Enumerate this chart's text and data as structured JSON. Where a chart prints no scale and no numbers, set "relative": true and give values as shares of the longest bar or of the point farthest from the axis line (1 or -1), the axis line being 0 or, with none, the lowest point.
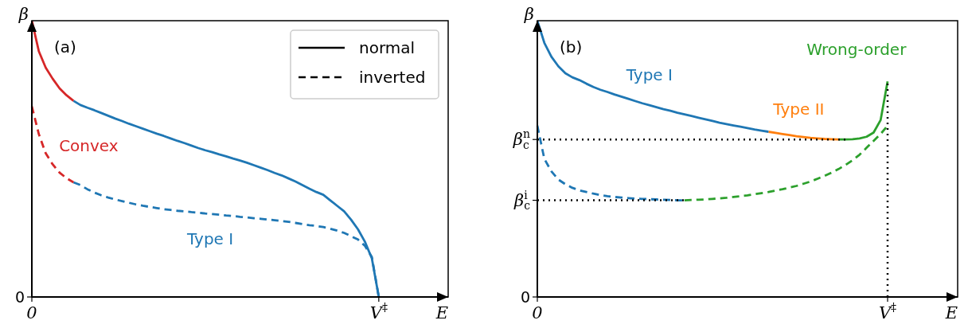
{
  "chart_data": [
    {
      "type": "line",
      "relative": true,
      "xlabel": "E",
      "ylabel": "β",
      "legend": "top right",
      "annotations": [
        "(a)",
        "0"
      ],
      "categories": [
        "0",
        null,
        null,
        null,
        null,
        null,
        null,
        null,
        null,
        null,
        null,
        null,
        null,
        null,
        null,
        null,
        null,
        null,
        null,
        null,
        null,
        null,
        null,
        null,
        null,
        null,
        null,
        null,
        null,
        null,
        null,
        null,
        null,
        null,
        null,
        null,
        null,
        null,
        null,
        null,
        null,
        null,
        null,
        null,
        null,
        null,
        null,
        null,
        null,
        null,
        "V$^{‡}$",
        null,
        null,
        null,
        null,
        null,
        null,
        null,
        null,
        null,
        null
      ],
      "series": [
        {
          "color": "#d62728",
          "line_style": "solid",
          "values": [
            1.0,
            0.89,
            0.83,
            0.79,
            0.755,
            0.73,
            0.71,
            null,
            null,
            null,
            null,
            null,
            null,
            null,
            null,
            null,
            null,
            null,
            null,
            null,
            null,
            null,
            null,
            null,
            null,
            null,
            null,
            null,
            null,
            null,
            null,
            null,
            null,
            null,
            null,
            null,
            null,
            null,
            null,
            null,
            null,
            null,
            null,
            null,
            null,
            null,
            null,
            null,
            null,
            null,
            null,
            null,
            null,
            null,
            null,
            null,
            null,
            null,
            null,
            null,
            null
          ]
        },
        {
          "color": "#1f77b4",
          "line_style": "solid",
          "values": [
            null,
            null,
            null,
            null,
            null,
            null,
            0.71,
            0.695,
            0.685,
            0.676,
            0.666,
            0.656,
            0.646,
            0.637,
            0.627,
            0.618,
            0.609,
            0.6,
            0.591,
            0.583,
            0.574,
            0.565,
            0.557,
            0.548,
            0.539,
            0.531,
            0.524,
            0.516,
            0.509,
            0.501,
            0.494,
            0.486,
            0.477,
            0.468,
            0.459,
            0.449,
            0.44,
            0.429,
            0.418,
            0.405,
            0.392,
            0.38,
            0.37,
            0.35,
            0.33,
            0.31,
            0.28,
            0.245,
            0.2,
            0.14,
            0.0,
            null,
            null,
            null,
            null,
            null,
            null,
            null,
            null,
            null,
            null
          ]
        },
        {
          "name": "Convex",
          "color": "#d62728",
          "line_style": "dashed",
          "values": [
            0.69,
            0.59,
            0.52,
            0.48,
            0.45,
            0.43,
            0.415,
            null,
            null,
            null,
            null,
            null,
            null,
            null,
            null,
            null,
            null,
            null,
            null,
            null,
            null,
            null,
            null,
            null,
            null,
            null,
            null,
            null,
            null,
            null,
            null,
            null,
            null,
            null,
            null,
            null,
            null,
            null,
            null,
            null,
            null,
            null,
            null,
            null,
            null,
            null,
            null,
            null,
            null,
            null,
            null,
            null,
            null,
            null,
            null,
            null,
            null,
            null,
            null,
            null,
            null
          ]
        },
        {
          "name": "Type I",
          "color": "#1f77b4",
          "line_style": "dashed",
          "values": [
            null,
            null,
            null,
            null,
            null,
            null,
            0.415,
            0.405,
            0.39,
            0.378,
            0.368,
            0.36,
            0.353,
            0.347,
            0.341,
            0.335,
            0.33,
            0.326,
            0.322,
            0.318,
            0.315,
            0.312,
            0.31,
            0.307,
            0.305,
            0.302,
            0.3,
            0.298,
            0.295,
            0.293,
            0.29,
            0.288,
            0.285,
            0.283,
            0.28,
            0.278,
            0.275,
            0.272,
            0.268,
            0.264,
            0.26,
            0.257,
            0.253,
            0.247,
            0.24,
            0.232,
            0.22,
            0.208,
            0.185,
            0.145,
            0.0,
            null,
            null,
            null,
            null,
            null,
            null,
            null,
            null,
            null,
            null
          ]
        },
        {
          "name": "normal",
          "color": "#000000",
          "line_style": "solid",
          "values": [
            null,
            null,
            null,
            null,
            null,
            null,
            null,
            null,
            null,
            null,
            null,
            null,
            null,
            null,
            null,
            null,
            null,
            null,
            null,
            null,
            null,
            null,
            null,
            null,
            null,
            null,
            null,
            null,
            null,
            null,
            null,
            null,
            null,
            null,
            null,
            null,
            null,
            null,
            null,
            null,
            null,
            null,
            null,
            null,
            null,
            null,
            null,
            null,
            null,
            null,
            null,
            null,
            null,
            null,
            null,
            null,
            null,
            null,
            null,
            null,
            null
          ]
        },
        {
          "name": "inverted",
          "color": "#000000",
          "line_style": "dashed",
          "values": [
            null,
            null,
            null,
            null,
            null,
            null,
            null,
            null,
            null,
            null,
            null,
            null,
            null,
            null,
            null,
            null,
            null,
            null,
            null,
            null,
            null,
            null,
            null,
            null,
            null,
            null,
            null,
            null,
            null,
            null,
            null,
            null,
            null,
            null,
            null,
            null,
            null,
            null,
            null,
            null,
            null,
            null,
            null,
            null,
            null,
            null,
            null,
            null,
            null,
            null,
            null,
            null,
            null,
            null,
            null,
            null,
            null,
            null,
            null,
            null,
            null
          ]
        }
      ]
    },
    {
      "type": "line",
      "relative": true,
      "xlabel": "E",
      "ylabel": "β",
      "annotations": [
        "(b)",
        "0"
      ],
      "categories": [
        "0",
        null,
        null,
        null,
        null,
        null,
        null,
        null,
        null,
        null,
        null,
        null,
        null,
        null,
        null,
        null,
        null,
        null,
        null,
        null,
        null,
        null,
        null,
        null,
        null,
        null,
        null,
        null,
        null,
        null,
        null,
        null,
        null,
        null,
        null,
        null,
        null,
        null,
        null,
        null,
        null,
        null,
        null,
        null,
        null,
        null,
        null,
        null,
        null,
        null,
        "V$^{‡}$",
        null,
        null,
        null,
        null,
        null,
        null,
        null,
        null,
        null,
        null
      ],
      "ref_lines": [
        {
          "axis": "y",
          "value": 0.57,
          "label": "β$_{c}$$^{n}$",
          "line_style": "dotted",
          "color": "#000000"
        },
        {
          "axis": "y",
          "value": 0.35,
          "label": "β$_{c}$$^{i}$",
          "line_style": "dotted",
          "color": "#000000"
        },
        {
          "axis": "x",
          "value": "V$^{‡}$",
          "line_style": "dotted",
          "color": "#000000"
        }
      ],
      "series": [
        {
          "name": "Type I",
          "color": "#1f77b4",
          "line_style": "solid",
          "values": [
            1.0,
            0.92,
            0.87,
            0.835,
            0.81,
            0.795,
            0.785,
            0.772,
            0.76,
            0.75,
            0.742,
            0.733,
            0.725,
            0.717,
            0.709,
            0.701,
            0.694,
            0.687,
            0.68,
            0.674,
            0.667,
            0.661,
            0.655,
            0.649,
            0.643,
            0.637,
            0.631,
            0.626,
            0.621,
            0.616,
            0.611,
            0.606,
            0.602,
            0.598,
            null,
            null,
            null,
            null,
            null,
            null,
            null,
            null,
            null,
            null,
            null,
            null,
            null,
            null,
            null,
            null,
            null,
            null,
            null,
            null,
            null,
            null,
            null,
            null,
            null,
            null,
            null
          ]
        },
        {
          "name": "Type II",
          "color": "#ff7f0e",
          "line_style": "solid",
          "values": [
            null,
            null,
            null,
            null,
            null,
            null,
            null,
            null,
            null,
            null,
            null,
            null,
            null,
            null,
            null,
            null,
            null,
            null,
            null,
            null,
            null,
            null,
            null,
            null,
            null,
            null,
            null,
            null,
            null,
            null,
            null,
            null,
            null,
            0.598,
            0.594,
            0.59,
            0.586,
            0.582,
            0.579,
            0.576,
            0.574,
            0.572,
            0.571,
            0.57,
            null,
            null,
            null,
            null,
            null,
            null,
            null,
            null,
            null,
            null,
            null,
            null,
            null,
            null,
            null,
            null,
            null
          ]
        },
        {
          "name": "Wrong-order",
          "color": "#2ca02c",
          "line_style": "solid",
          "values": [
            null,
            null,
            null,
            null,
            null,
            null,
            null,
            null,
            null,
            null,
            null,
            null,
            null,
            null,
            null,
            null,
            null,
            null,
            null,
            null,
            null,
            null,
            null,
            null,
            null,
            null,
            null,
            null,
            null,
            null,
            null,
            null,
            null,
            null,
            null,
            null,
            null,
            null,
            null,
            null,
            null,
            null,
            null,
            0.57,
            0.57,
            0.571,
            0.574,
            0.58,
            0.595,
            0.64,
            0.78,
            null,
            null,
            null,
            null,
            null,
            null,
            null,
            null,
            null,
            null
          ]
        },
        {
          "color": "#1f77b4",
          "line_style": "dashed",
          "values": [
            0.62,
            0.5,
            0.455,
            0.425,
            0.408,
            0.395,
            0.386,
            0.38,
            0.374,
            0.369,
            0.365,
            0.362,
            0.36,
            0.358,
            0.356,
            0.355,
            0.354,
            0.353,
            0.352,
            0.351,
            0.35,
            0.35,
            null,
            null,
            null,
            null,
            null,
            null,
            null,
            null,
            null,
            null,
            null,
            null,
            null,
            null,
            null,
            null,
            null,
            null,
            null,
            null,
            null,
            null,
            null,
            null,
            null,
            null,
            null,
            null,
            null,
            null,
            null,
            null,
            null,
            null,
            null,
            null,
            null,
            null,
            null
          ]
        },
        {
          "color": "#2ca02c",
          "line_style": "dashed",
          "values": [
            null,
            null,
            null,
            null,
            null,
            null,
            null,
            null,
            null,
            null,
            null,
            null,
            null,
            null,
            null,
            null,
            null,
            null,
            null,
            null,
            null,
            0.35,
            0.351,
            0.352,
            0.353,
            0.355,
            0.357,
            0.359,
            0.362,
            0.365,
            0.368,
            0.372,
            0.376,
            0.38,
            0.385,
            0.39,
            0.396,
            0.402,
            0.41,
            0.418,
            0.428,
            0.438,
            0.45,
            0.463,
            0.478,
            0.495,
            0.515,
            0.54,
            0.565,
            0.59,
            0.62,
            null,
            null,
            null,
            null,
            null,
            null,
            null,
            null,
            null,
            null
          ]
        }
      ]
    }
  ]
}
